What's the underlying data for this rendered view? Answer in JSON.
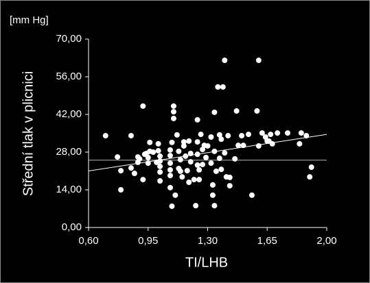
{
  "chart_data": {
    "type": "scatter",
    "unit_label": "[mm Hg]",
    "y_label": "Střední tlak v plicnici",
    "x_label": "TI/LHB",
    "color": "#ffffff",
    "xlim": [
      0.6,
      2.0
    ],
    "ylim": [
      0,
      70
    ],
    "xticks": [
      {
        "value": 0.6,
        "label": "0,60"
      },
      {
        "value": 0.95,
        "label": "0,95"
      },
      {
        "value": 1.3,
        "label": "1,30"
      },
      {
        "value": 1.65,
        "label": "1,65"
      },
      {
        "value": 2.0,
        "label": "2,00"
      }
    ],
    "yticks": [
      {
        "value": 0,
        "label": "0,00"
      },
      {
        "value": 14,
        "label": "14,00"
      },
      {
        "value": 28,
        "label": "28,00"
      },
      {
        "value": 42,
        "label": "42,00"
      },
      {
        "value": 56,
        "label": "56,00"
      },
      {
        "value": 70,
        "label": "70,00"
      }
    ],
    "x": [
      0.7,
      0.77,
      0.79,
      0.79,
      0.85,
      0.85,
      0.87,
      0.89,
      0.89,
      0.9,
      0.92,
      0.92,
      0.93,
      0.94,
      0.95,
      0.96,
      0.96,
      0.95,
      0.98,
      1.0,
      1.01,
      1.01,
      1.02,
      1.02,
      1.02,
      1.02,
      1.02,
      1.08,
      1.08,
      1.08,
      1.08,
      1.08,
      1.08,
      1.09,
      1.09,
      1.1,
      1.1,
      1.1,
      1.11,
      1.12,
      1.13,
      1.14,
      1.13,
      1.14,
      1.15,
      1.16,
      1.16,
      1.17,
      1.18,
      1.19,
      1.19,
      1.2,
      1.2,
      1.22,
      1.23,
      1.24,
      1.24,
      1.24,
      1.24,
      1.25,
      1.25,
      1.26,
      1.27,
      1.27,
      1.28,
      1.29,
      1.3,
      1.32,
      1.32,
      1.33,
      1.33,
      1.34,
      1.34,
      1.34,
      1.35,
      1.36,
      1.37,
      1.37,
      1.38,
      1.38,
      1.39,
      1.4,
      1.4,
      1.41,
      1.42,
      1.43,
      1.43,
      1.46,
      1.47,
      1.48,
      1.5,
      1.51,
      1.54,
      1.56,
      1.59,
      1.6,
      1.6,
      1.62,
      1.64,
      1.65,
      1.66,
      1.67,
      1.68,
      1.71,
      1.77,
      1.84,
      1.85,
      1.88,
      1.9,
      1.91
    ],
    "y": [
      34.1,
      26.2,
      21.1,
      14.0,
      34.1,
      22.1,
      20.1,
      24.2,
      26.2,
      25.5,
      45.1,
      17.8,
      27.2,
      27.5,
      26.0,
      28.3,
      31.6,
      23.9,
      28.0,
      24.2,
      31.1,
      28.5,
      26.5,
      24.7,
      22.7,
      20.6,
      17.3,
      26.7,
      28.8,
      23.9,
      21.4,
      19.3,
      14.8,
      7.9,
      31.6,
      40.5,
      45.1,
      43.0,
      12.0,
      34.4,
      28.3,
      25.2,
      21.9,
      20.9,
      18.8,
      31.8,
      30.3,
      26.5,
      21.1,
      16.8,
      32.1,
      27.5,
      24.4,
      17.8,
      8.1,
      40.0,
      31.8,
      27.2,
      23.2,
      21.4,
      17.8,
      34.6,
      29.0,
      23.4,
      30.5,
      26.0,
      30.3,
      23.9,
      33.6,
      12.0,
      15.8,
      42.8,
      28.3,
      8.1,
      20.9,
      52.2,
      34.4,
      25.7,
      32.8,
      21.6,
      52.2,
      27.7,
      62.1,
      18.8,
      34.1,
      15.5,
      18.6,
      25.5,
      43.3,
      30.5,
      34.1,
      30.5,
      34.6,
      12.0,
      43.3,
      62.1,
      30.3,
      35.1,
      33.6,
      32.1,
      32.1,
      34.6,
      31.1,
      35.1,
      35.1,
      31.1,
      35.1,
      34.1,
      18.8,
      22.4
    ],
    "trend_line": {
      "x": [
        0.6,
        2.0
      ],
      "y": [
        21,
        34.6
      ]
    },
    "reference_line": 25
  }
}
